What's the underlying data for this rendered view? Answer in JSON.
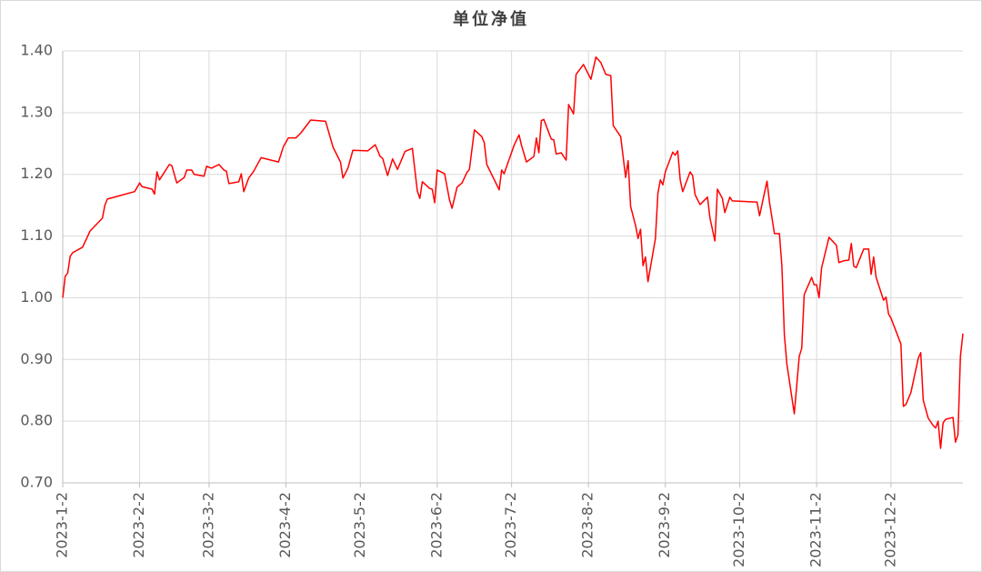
{
  "chart_data": {
    "type": "line",
    "title": "单位净值",
    "x": [
      "2023-1-2",
      "2023-1-3",
      "2023-1-4",
      "2023-1-5",
      "2023-1-6",
      "2023-1-10",
      "2023-1-13",
      "2023-1-18",
      "2023-1-19",
      "2023-1-20",
      "2023-1-31",
      "2023-2-2",
      "2023-2-3",
      "2023-2-7",
      "2023-2-8",
      "2023-2-9",
      "2023-2-10",
      "2023-2-14",
      "2023-2-15",
      "2023-2-17",
      "2023-2-20",
      "2023-2-21",
      "2023-2-23",
      "2023-2-24",
      "2023-2-28",
      "2023-3-1",
      "2023-3-3",
      "2023-3-6",
      "2023-3-8",
      "2023-3-9",
      "2023-3-10",
      "2023-3-14",
      "2023-3-15",
      "2023-3-16",
      "2023-3-18",
      "2023-3-20",
      "2023-3-23",
      "2023-3-30",
      "2023-4-1",
      "2023-4-3",
      "2023-4-6",
      "2023-4-8",
      "2023-4-12",
      "2023-4-18",
      "2023-4-21",
      "2023-4-24",
      "2023-4-25",
      "2023-4-27",
      "2023-4-29",
      "2023-5-5",
      "2023-5-8",
      "2023-5-10",
      "2023-5-11",
      "2023-5-13",
      "2023-5-15",
      "2023-5-17",
      "2023-5-20",
      "2023-5-23",
      "2023-5-24",
      "2023-5-25",
      "2023-5-26",
      "2023-5-27",
      "2023-5-30",
      "2023-5-31",
      "2023-6-1",
      "2023-6-2",
      "2023-6-5",
      "2023-6-7",
      "2023-6-8",
      "2023-6-10",
      "2023-6-12",
      "2023-6-14",
      "2023-6-15",
      "2023-6-17",
      "2023-6-20",
      "2023-6-21",
      "2023-6-22",
      "2023-6-27",
      "2023-6-28",
      "2023-6-29",
      "2023-7-3",
      "2023-7-5",
      "2023-7-6",
      "2023-7-8",
      "2023-7-11",
      "2023-7-12",
      "2023-7-13",
      "2023-7-14",
      "2023-7-15",
      "2023-7-18",
      "2023-7-19",
      "2023-7-20",
      "2023-7-22",
      "2023-7-24",
      "2023-7-25",
      "2023-7-27",
      "2023-7-28",
      "2023-7-31",
      "2023-8-3",
      "2023-8-5",
      "2023-8-7",
      "2023-8-9",
      "2023-8-11",
      "2023-8-12",
      "2023-8-15",
      "2023-8-17",
      "2023-8-18",
      "2023-8-19",
      "2023-8-21",
      "2023-8-22",
      "2023-8-23",
      "2023-8-24",
      "2023-8-25",
      "2023-8-26",
      "2023-8-29",
      "2023-8-30",
      "2023-8-31",
      "2023-9-1",
      "2023-9-2",
      "2023-9-5",
      "2023-9-6",
      "2023-9-7",
      "2023-9-8",
      "2023-9-9",
      "2023-9-12",
      "2023-9-13",
      "2023-9-14",
      "2023-9-16",
      "2023-9-19",
      "2023-9-20",
      "2023-9-22",
      "2023-9-23",
      "2023-9-25",
      "2023-9-26",
      "2023-9-28",
      "2023-9-29",
      "2023-10-9",
      "2023-10-10",
      "2023-10-13",
      "2023-10-14",
      "2023-10-16",
      "2023-10-18",
      "2023-10-19",
      "2023-10-20",
      "2023-10-21",
      "2023-10-24",
      "2023-10-26",
      "2023-10-27",
      "2023-10-28",
      "2023-10-31",
      "2023-11-1",
      "2023-11-2",
      "2023-11-3",
      "2023-11-4",
      "2023-11-7",
      "2023-11-10",
      "2023-11-11",
      "2023-11-13",
      "2023-11-15",
      "2023-11-16",
      "2023-11-17",
      "2023-11-18",
      "2023-11-21",
      "2023-11-23",
      "2023-11-24",
      "2023-11-25",
      "2023-11-26",
      "2023-11-29",
      "2023-11-30",
      "2023-12-1",
      "2023-12-2",
      "2023-12-6",
      "2023-12-7",
      "2023-12-8",
      "2023-12-10",
      "2023-12-13",
      "2023-12-14",
      "2023-12-15",
      "2023-12-17",
      "2023-12-19",
      "2023-12-20",
      "2023-12-21",
      "2023-12-22",
      "2023-12-23",
      "2023-12-24",
      "2023-12-27",
      "2023-12-28",
      "2023-12-29",
      "2023-12-30",
      "2023-12-31"
    ],
    "series": [
      {
        "name": "单位净值",
        "color": "#ff0000",
        "values": [
          1.0,
          1.035,
          1.04,
          1.067,
          1.073,
          1.082,
          1.108,
          1.129,
          1.15,
          1.16,
          1.172,
          1.186,
          1.18,
          1.176,
          1.168,
          1.204,
          1.191,
          1.216,
          1.214,
          1.186,
          1.195,
          1.207,
          1.207,
          1.2,
          1.197,
          1.213,
          1.21,
          1.216,
          1.207,
          1.205,
          1.185,
          1.188,
          1.201,
          1.172,
          1.194,
          1.205,
          1.227,
          1.22,
          1.245,
          1.259,
          1.259,
          1.267,
          1.288,
          1.286,
          1.244,
          1.22,
          1.194,
          1.21,
          1.239,
          1.238,
          1.248,
          1.229,
          1.226,
          1.198,
          1.225,
          1.208,
          1.237,
          1.242,
          1.207,
          1.173,
          1.161,
          1.188,
          1.177,
          1.176,
          1.154,
          1.207,
          1.201,
          1.158,
          1.145,
          1.179,
          1.186,
          1.203,
          1.208,
          1.272,
          1.261,
          1.251,
          1.216,
          1.175,
          1.207,
          1.201,
          1.247,
          1.264,
          1.247,
          1.22,
          1.229,
          1.259,
          1.235,
          1.287,
          1.289,
          1.257,
          1.256,
          1.233,
          1.235,
          1.223,
          1.313,
          1.298,
          1.362,
          1.378,
          1.354,
          1.39,
          1.381,
          1.362,
          1.36,
          1.279,
          1.261,
          1.195,
          1.222,
          1.148,
          1.117,
          1.096,
          1.111,
          1.052,
          1.066,
          1.026,
          1.096,
          1.169,
          1.191,
          1.183,
          1.204,
          1.236,
          1.231,
          1.238,
          1.191,
          1.172,
          1.204,
          1.198,
          1.167,
          1.151,
          1.163,
          1.129,
          1.092,
          1.176,
          1.161,
          1.138,
          1.163,
          1.157,
          1.155,
          1.133,
          1.189,
          1.155,
          1.104,
          1.104,
          1.052,
          0.94,
          0.893,
          0.812,
          0.905,
          0.918,
          1.005,
          1.033,
          1.021,
          1.021,
          1.0,
          1.048,
          1.098,
          1.085,
          1.057,
          1.06,
          1.061,
          1.088,
          1.051,
          1.049,
          1.079,
          1.079,
          1.038,
          1.066,
          1.033,
          0.996,
          1.001,
          0.974,
          0.967,
          0.925,
          0.824,
          0.827,
          0.846,
          0.902,
          0.911,
          0.834,
          0.805,
          0.793,
          0.789,
          0.8,
          0.756,
          0.797,
          0.803,
          0.806,
          0.766,
          0.778,
          0.905,
          0.942
        ]
      }
    ],
    "xlim": [
      "2023-1-2",
      "2023-12-31"
    ],
    "xticks": [
      "2023-1-2",
      "2023-2-2",
      "2023-3-2",
      "2023-4-2",
      "2023-5-2",
      "2023-6-2",
      "2023-7-2",
      "2023-8-2",
      "2023-9-2",
      "2023-10-2",
      "2023-11-2",
      "2023-12-2"
    ],
    "ylim": [
      0.7,
      1.4
    ],
    "yticks": [
      {
        "value": 0.7,
        "label": "0.70"
      },
      {
        "value": 0.8,
        "label": "0.80"
      },
      {
        "value": 0.9,
        "label": "0.90"
      },
      {
        "value": 1.0,
        "label": "1.00"
      },
      {
        "value": 1.1,
        "label": "1.10"
      },
      {
        "value": 1.2,
        "label": "1.20"
      },
      {
        "value": 1.3,
        "label": "1.30"
      },
      {
        "value": 1.4,
        "label": "1.40"
      }
    ],
    "grid": true
  }
}
